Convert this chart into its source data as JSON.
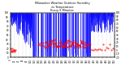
{
  "title": "Milwaukee Weather Outdoor Humidity vs Temperature Every 5 Minutes",
  "background_color": "#ffffff",
  "plot_bg_color": "#ffffff",
  "grid_color": "#888888",
  "blue_color": "#0000ff",
  "red_color": "#ff0000",
  "cyan_color": "#00ccff",
  "ylim_left": [
    0,
    100
  ],
  "ylim_right": [
    -20,
    100
  ],
  "xlim": [
    0,
    520
  ],
  "figsize": [
    1.6,
    0.87
  ],
  "dpi": 100,
  "n_points": 520,
  "left_cluster_end": 110,
  "right_cluster_start": 400,
  "right_cluster_end": 515
}
